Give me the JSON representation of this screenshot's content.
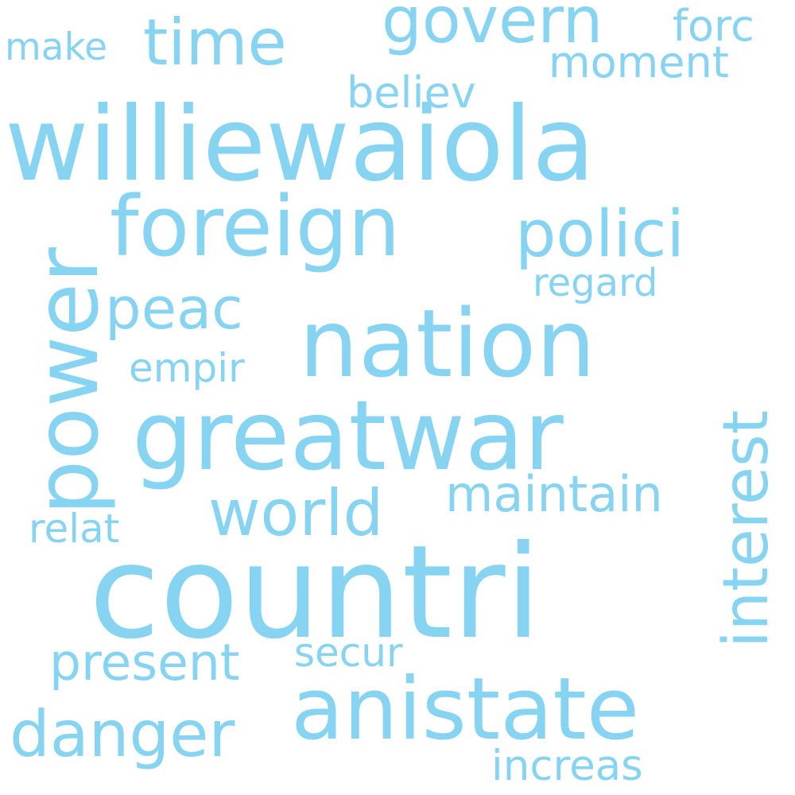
{
  "cloud": {
    "color": "#87d3f2",
    "background": "#ffffff",
    "words": {
      "williewaiola": "williewaiola",
      "countri": "countri",
      "greatwar": "greatwar",
      "nation": "nation",
      "anistate": "anistate",
      "foreign": "foreign",
      "power": "power",
      "polici": "polici",
      "interest": "interest",
      "govern": "govern",
      "time": "time",
      "world": "world",
      "danger": "danger",
      "peac": "peac",
      "maintain": "maintain",
      "present": "present",
      "believ": "believ",
      "moment": "moment",
      "forc": "forc",
      "make": "make",
      "regard": "regard",
      "empir": "empir",
      "relat": "relat",
      "secur": "secur",
      "increas": "increas"
    }
  }
}
